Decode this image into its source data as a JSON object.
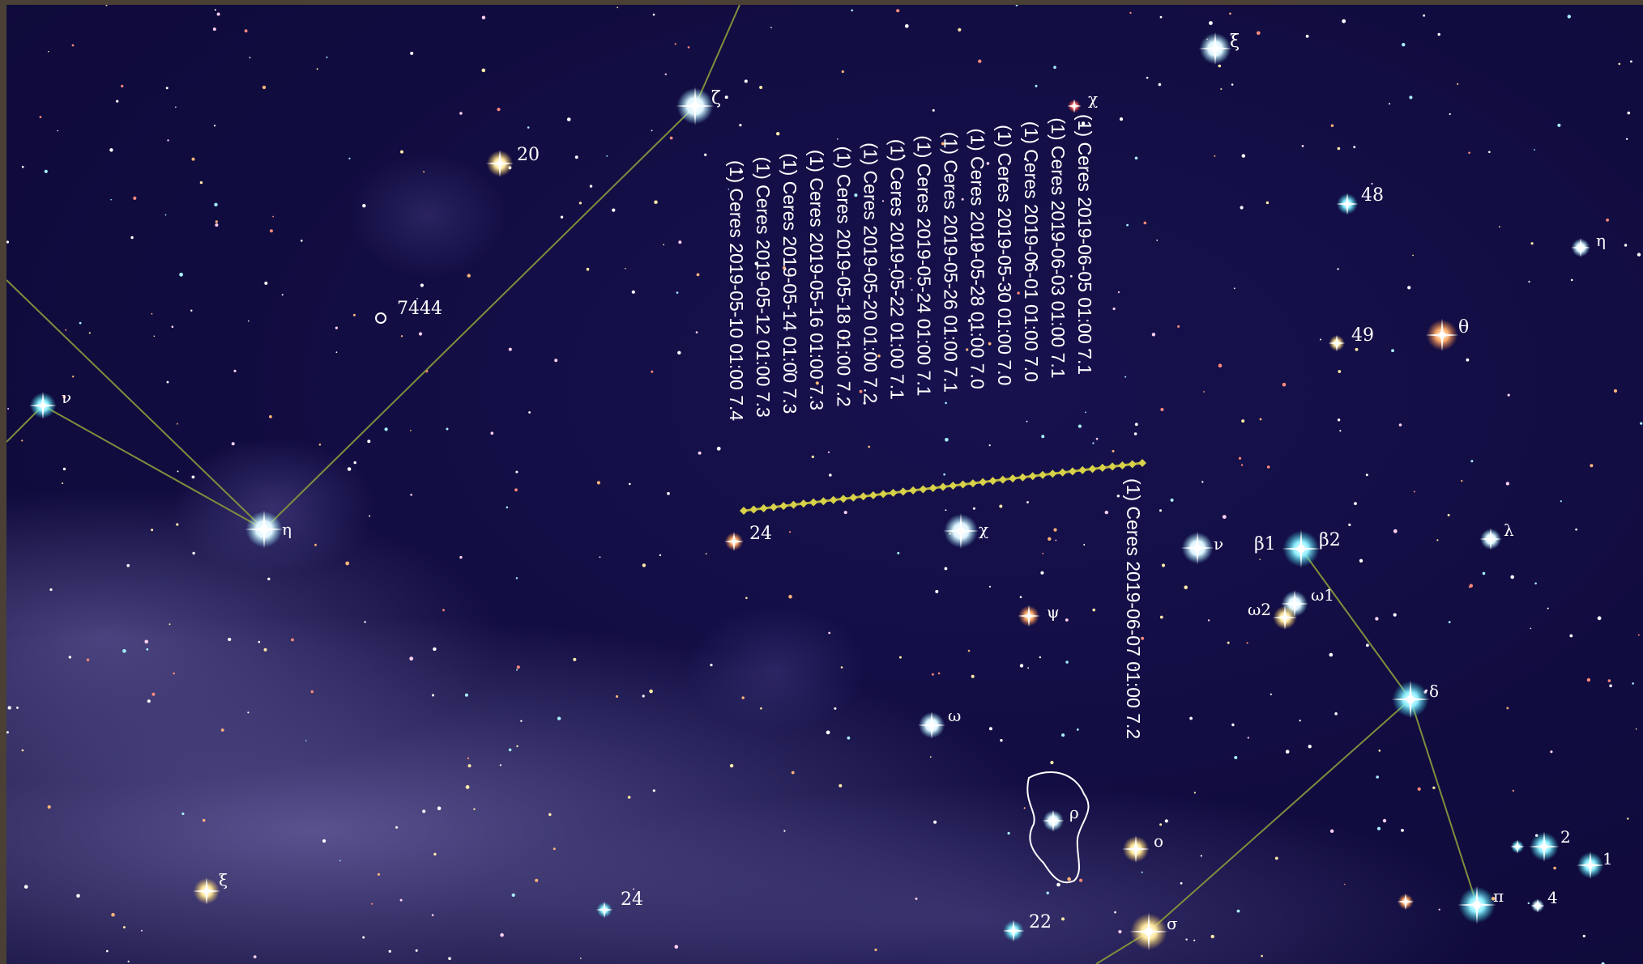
{
  "header": {
    "banner_text": "• • • • •"
  },
  "colors": {
    "background": "#110c40",
    "constellation_line": "#7f8f3c",
    "track": "#b5b03a",
    "label": "#ffffff"
  },
  "star_labels": [
    {
      "id": "zeta",
      "text": "ζ"
    },
    {
      "id": "xi-top",
      "text": "ξ"
    },
    {
      "id": "chi-top",
      "text": "χ"
    },
    {
      "id": "s20",
      "text": "20"
    },
    {
      "id": "s7444",
      "text": "7444"
    },
    {
      "id": "s48",
      "text": "48"
    },
    {
      "id": "eta-right",
      "text": "η"
    },
    {
      "id": "s49",
      "text": "49"
    },
    {
      "id": "theta",
      "text": "θ"
    },
    {
      "id": "nu-left",
      "text": "ν"
    },
    {
      "id": "eta-left",
      "text": "η"
    },
    {
      "id": "s24-mid",
      "text": "24"
    },
    {
      "id": "chi-mid",
      "text": "χ"
    },
    {
      "id": "nu-right",
      "text": "ν"
    },
    {
      "id": "beta1",
      "text": "β1"
    },
    {
      "id": "beta2",
      "text": "β2"
    },
    {
      "id": "lambda",
      "text": "λ"
    },
    {
      "id": "psi",
      "text": "ψ"
    },
    {
      "id": "omega1",
      "text": "ω1"
    },
    {
      "id": "omega2",
      "text": "ω2"
    },
    {
      "id": "delta",
      "text": "δ"
    },
    {
      "id": "omega",
      "text": "ω"
    },
    {
      "id": "rho",
      "text": "ρ"
    },
    {
      "id": "omicron",
      "text": "ο"
    },
    {
      "id": "xi-low",
      "text": "ξ"
    },
    {
      "id": "s24-low",
      "text": "24"
    },
    {
      "id": "s22",
      "text": "22"
    },
    {
      "id": "sigma",
      "text": "σ"
    },
    {
      "id": "pi",
      "text": "π"
    },
    {
      "id": "s4",
      "text": "4"
    },
    {
      "id": "s2",
      "text": "2"
    },
    {
      "id": "s1",
      "text": "1"
    }
  ],
  "ceres_track": {
    "labels": [
      "(1) Ceres 2019-05-10 01:00 7.4",
      "(1) Ceres 2019-05-12 01:00 7.3",
      "(1) Ceres 2019-05-14 01:00 7.3",
      "(1) Ceres 2019-05-16 01:00 7.3",
      "(1) Ceres 2019-05-18 01:00 7.2",
      "(1) Ceres 2019-05-20 01:00 7.2",
      "(1) Ceres 2019-05-22 01:00 7.1",
      "(1) Ceres 2019-05-24 01:00 7.1",
      "(1) Ceres 2019-05-26 01:00 7.1",
      "(1) Ceres 2019-05-28 01:00 7.0",
      "(1) Ceres 2019-05-30 01:00 7.0",
      "(1) Ceres 2019-06-01 01:00 7.0",
      "(1) Ceres 2019-06-03 01:00 7.1",
      "(1) Ceres 2019-06-05 01:00 7.1"
    ],
    "final_label": "(1) Ceres 2019-06-07 01:00 7.2"
  }
}
